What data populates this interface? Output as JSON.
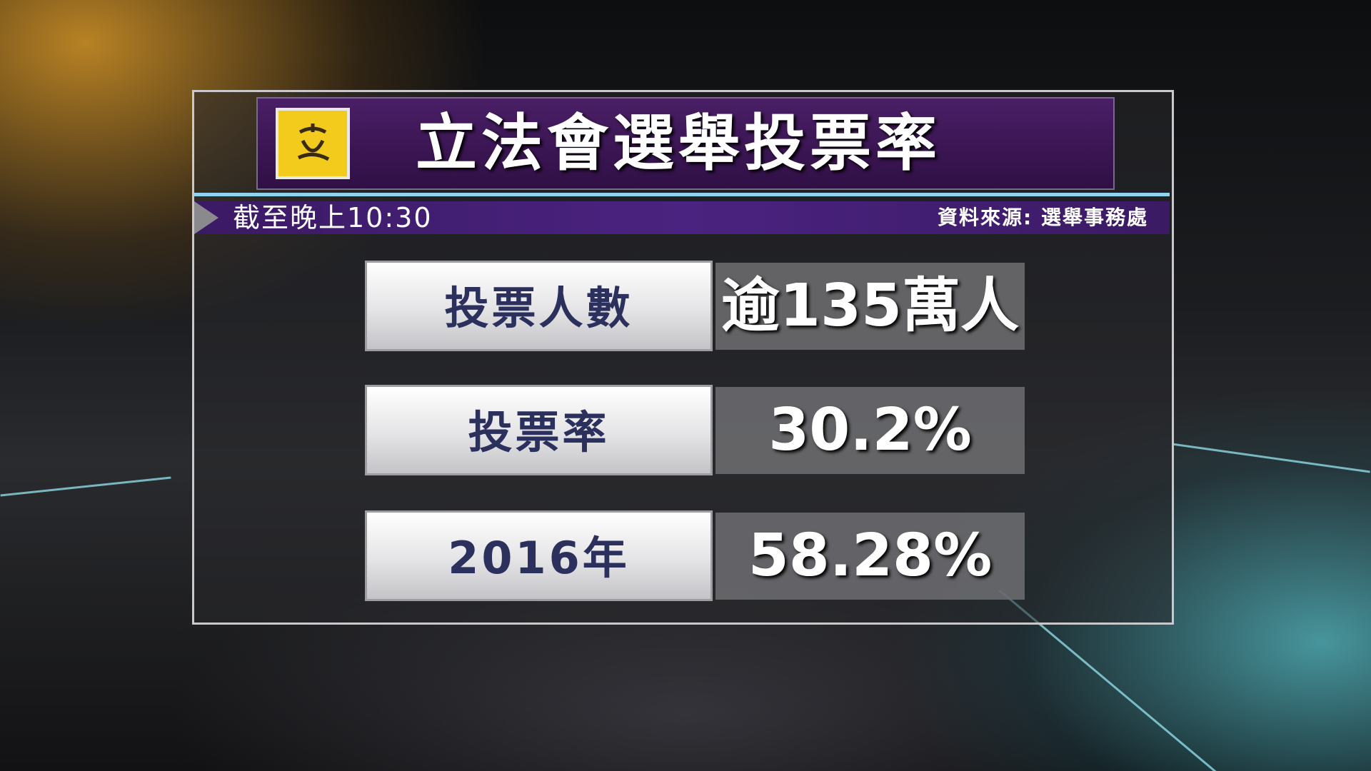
{
  "header": {
    "title": "立法會選舉投票率",
    "as_of": "截至晚上10:30",
    "source": "資料來源: 選舉事務處"
  },
  "table": {
    "rows": [
      [
        "投票人數",
        "逾135萬人"
      ],
      [
        "投票率",
        "30.2%"
      ],
      [
        "2016年",
        "58.28%"
      ]
    ]
  }
}
